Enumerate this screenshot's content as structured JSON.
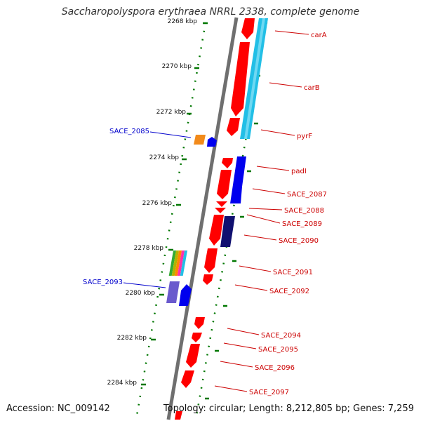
{
  "title": "Saccharopolyspora erythraea NRRL 2338, complete genome",
  "accession": "Accession: NC_009142",
  "topology": "Topology: circular; Length: 8,212,805 bp; Genes: 7,259",
  "colors": {
    "forward": "#ff0000",
    "reverse_blue": "#0000ee",
    "teal": "#22bfe6",
    "label_red": "#cc0000",
    "label_blue": "#0000cc",
    "tick": "#007700",
    "backbone": "#808080"
  },
  "scale_ticks": [
    "2268 kbp",
    "2270 kbp",
    "2272 kbp",
    "2274 kbp",
    "2276 kbp",
    "2278 kbp",
    "2280 kbp",
    "2282 kbp",
    "2284 kbp"
  ],
  "right_labels": [
    "carA",
    "carB",
    "pyrF",
    "padI",
    "SACE_2087",
    "SACE_2088",
    "SACE_2089",
    "SACE_2090",
    "SACE_2091",
    "SACE_2092",
    "SACE_2094",
    "SACE_2095",
    "SACE_2096",
    "SACE_2097"
  ],
  "left_labels": [
    "SACE_2085",
    "SACE_2093"
  ]
}
